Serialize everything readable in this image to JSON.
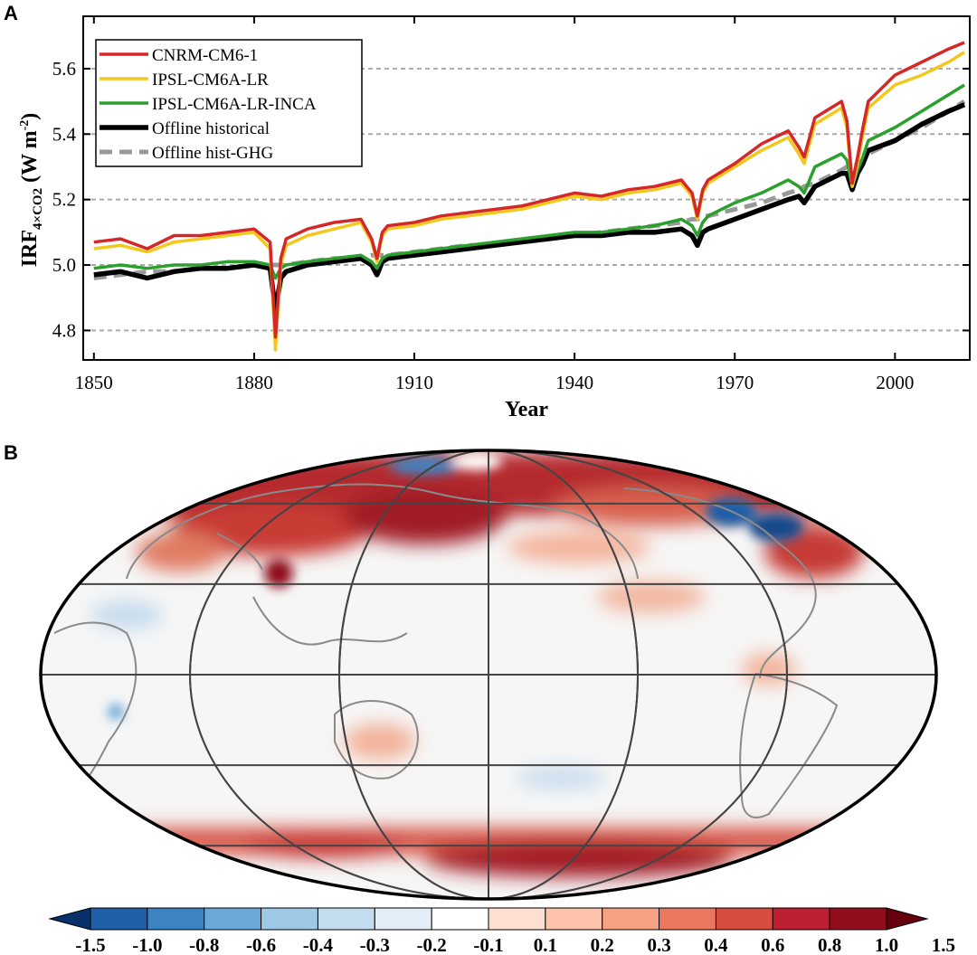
{
  "panel_a_letter": "A",
  "panel_b_letter": "B",
  "chart_data": [
    {
      "type": "line",
      "panel": "A",
      "xlabel": "Year",
      "ylabel_main": "IRF",
      "ylabel_sub": "4×CO2",
      "ylabel_unit_pre": " (W m",
      "ylabel_unit_sup": "-2",
      "ylabel_unit_post": ")",
      "xlim": [
        1848,
        2014
      ],
      "ylim": [
        4.71,
        5.76
      ],
      "xticks": [
        1850,
        1880,
        1910,
        1940,
        1970,
        2000
      ],
      "yticks": [
        4.8,
        5.0,
        5.2,
        5.4,
        5.6
      ],
      "ytick_labels": [
        "4.8",
        "5.0",
        "5.2",
        "5.4",
        "5.6"
      ],
      "grid": "horizontal dashed",
      "legend_position": "top-left",
      "x": [
        1850,
        1855,
        1860,
        1865,
        1870,
        1875,
        1880,
        1883,
        1884,
        1885,
        1886,
        1890,
        1895,
        1900,
        1902,
        1903,
        1904,
        1905,
        1910,
        1915,
        1920,
        1925,
        1930,
        1935,
        1940,
        1945,
        1950,
        1955,
        1960,
        1962,
        1963,
        1964,
        1965,
        1970,
        1975,
        1980,
        1982,
        1983,
        1985,
        1990,
        1991,
        1992,
        1993,
        1994,
        1995,
        2000,
        2005,
        2010,
        2013
      ],
      "series": [
        {
          "name": "CNRM-CM6-1",
          "color": "#d62728",
          "style": "solid",
          "values": [
            5.07,
            5.08,
            5.05,
            5.09,
            5.09,
            5.1,
            5.11,
            5.07,
            4.78,
            5.02,
            5.08,
            5.11,
            5.13,
            5.14,
            5.08,
            5.02,
            5.1,
            5.12,
            5.13,
            5.15,
            5.16,
            5.17,
            5.18,
            5.2,
            5.22,
            5.21,
            5.23,
            5.24,
            5.26,
            5.22,
            5.15,
            5.23,
            5.26,
            5.31,
            5.37,
            5.41,
            5.36,
            5.33,
            5.45,
            5.5,
            5.44,
            5.25,
            5.33,
            5.42,
            5.5,
            5.58,
            5.62,
            5.66,
            5.68
          ]
        },
        {
          "name": "IPSL-CM6A-LR",
          "color": "#f2c81e",
          "style": "solid",
          "values": [
            5.05,
            5.06,
            5.04,
            5.07,
            5.08,
            5.09,
            5.1,
            5.05,
            4.74,
            5.0,
            5.06,
            5.09,
            5.11,
            5.13,
            5.07,
            5.01,
            5.09,
            5.11,
            5.12,
            5.14,
            5.15,
            5.16,
            5.17,
            5.19,
            5.21,
            5.2,
            5.22,
            5.23,
            5.25,
            5.21,
            5.14,
            5.22,
            5.25,
            5.3,
            5.35,
            5.39,
            5.34,
            5.31,
            5.43,
            5.48,
            5.42,
            5.24,
            5.31,
            5.4,
            5.48,
            5.55,
            5.58,
            5.62,
            5.65
          ]
        },
        {
          "name": "IPSL-CM6A-LR-INCA",
          "color": "#2ca02c",
          "style": "solid",
          "values": [
            4.99,
            5.0,
            4.99,
            5.0,
            5.0,
            5.01,
            5.01,
            5.0,
            4.96,
            4.99,
            5.0,
            5.01,
            5.02,
            5.03,
            5.01,
            4.99,
            5.02,
            5.03,
            5.04,
            5.05,
            5.06,
            5.07,
            5.08,
            5.09,
            5.1,
            5.1,
            5.11,
            5.12,
            5.14,
            5.12,
            5.09,
            5.13,
            5.15,
            5.19,
            5.22,
            5.26,
            5.24,
            5.22,
            5.3,
            5.34,
            5.32,
            5.24,
            5.29,
            5.33,
            5.38,
            5.42,
            5.47,
            5.52,
            5.55
          ]
        },
        {
          "name": "Offline historical",
          "color": "#000000",
          "style": "solid-thick",
          "values": [
            4.97,
            4.98,
            4.96,
            4.98,
            4.99,
            4.99,
            5.0,
            4.99,
            4.86,
            4.96,
            4.98,
            5.0,
            5.01,
            5.02,
            5.0,
            4.97,
            5.01,
            5.02,
            5.03,
            5.04,
            5.05,
            5.06,
            5.07,
            5.08,
            5.09,
            5.09,
            5.1,
            5.1,
            5.11,
            5.09,
            5.06,
            5.1,
            5.11,
            5.14,
            5.17,
            5.2,
            5.21,
            5.19,
            5.24,
            5.28,
            5.28,
            5.23,
            5.28,
            5.31,
            5.35,
            5.38,
            5.43,
            5.47,
            5.49
          ]
        },
        {
          "name": "Offline hist-GHG",
          "color": "#999999",
          "style": "dashed",
          "values": [
            4.96,
            4.97,
            4.98,
            4.98,
            4.99,
            4.99,
            5.0,
            5.0,
            5.0,
            5.0,
            5.0,
            5.01,
            5.02,
            5.02,
            5.03,
            5.03,
            5.03,
            5.03,
            5.04,
            5.05,
            5.06,
            5.06,
            5.07,
            5.08,
            5.09,
            5.1,
            5.11,
            5.12,
            5.13,
            5.14,
            5.14,
            5.15,
            5.15,
            5.17,
            5.19,
            5.22,
            5.23,
            5.24,
            5.25,
            5.29,
            5.3,
            5.3,
            5.31,
            5.32,
            5.34,
            5.38,
            5.42,
            5.47,
            5.5
          ]
        }
      ]
    },
    {
      "type": "heatmap",
      "panel": "B",
      "projection": "Mollweide",
      "grid": "on",
      "colormap": [
        "#08306b",
        "#1f5fa8",
        "#3d84c2",
        "#6aa8d8",
        "#9dc8e6",
        "#c3dcee",
        "#e3eef8",
        "#ffffff",
        "#fde0d2",
        "#fcc2aa",
        "#f5a283",
        "#e9785f",
        "#d84d3f",
        "#bd2030",
        "#8f0d1d",
        "#67000d"
      ],
      "colorbar_ticks": [
        "-1.5",
        "-1.0",
        "-0.8",
        "-0.6",
        "-0.4",
        "-0.3",
        "-0.2",
        "-0.1",
        "0.1",
        "0.2",
        "0.3",
        "0.4",
        "0.6",
        "0.8",
        "1.0",
        "1.5"
      ]
    }
  ]
}
